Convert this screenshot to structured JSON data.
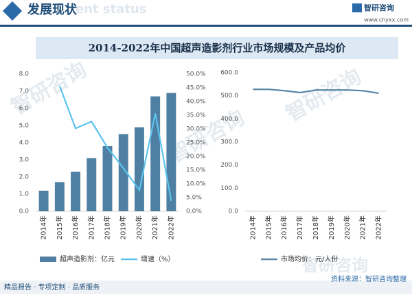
{
  "header": {
    "title": "发展现状",
    "subtitle": "ent status",
    "logo": "智研咨询",
    "url": "www.chyxx.com"
  },
  "banner": "2014-2022年中国超声造影剂行业市场规模及产品均价",
  "watermark": "智研咨询",
  "footer": {
    "left": "精品报告 · 专项定制 · 品质服务",
    "right": "资料来源：智研咨询整理"
  },
  "chart_data": [
    {
      "type": "bar",
      "categories": [
        "2014年",
        "2015年",
        "2016年",
        "2017年",
        "2018年",
        "2019年",
        "2020年",
        "2021年",
        "2022年"
      ],
      "series": [
        {
          "name": "超声造影剂：亿元",
          "type": "bar",
          "color": "#4f7fa3",
          "values": [
            1.2,
            1.7,
            2.3,
            3.1,
            3.8,
            4.5,
            4.9,
            6.7,
            6.9
          ]
        },
        {
          "name": "增速（%）",
          "type": "line",
          "axis": "y2",
          "color": "#5bc4ee",
          "values": [
            null,
            45.7,
            30.2,
            32.7,
            23.2,
            15.7,
            7.7,
            35.7,
            3.7
          ]
        }
      ],
      "ylim": [
        0,
        8
      ],
      "yticks": [
        {
          "value": 0,
          "label": "0.0"
        },
        {
          "value": 1,
          "label": "1.0"
        },
        {
          "value": 2,
          "label": "2.0"
        },
        {
          "value": 3,
          "label": "3.0"
        },
        {
          "value": 4,
          "label": "4.0"
        },
        {
          "value": 5,
          "label": "5.0"
        },
        {
          "value": 6,
          "label": "6.0"
        },
        {
          "value": 7,
          "label": "7.0"
        },
        {
          "value": 8,
          "label": "8.0"
        }
      ],
      "y2lim": [
        0,
        50
      ],
      "y2ticks": [
        {
          "value": 0,
          "label": "0.0%"
        },
        {
          "value": 5,
          "label": "5.0%"
        },
        {
          "value": 10,
          "label": "10.0%"
        },
        {
          "value": 15,
          "label": "15.0%"
        },
        {
          "value": 20,
          "label": "20.0%"
        },
        {
          "value": 25,
          "label": "25.0%"
        },
        {
          "value": 30,
          "label": "30.0%"
        },
        {
          "value": 35,
          "label": "35.0%"
        },
        {
          "value": 40,
          "label": "40.0%"
        },
        {
          "value": 45,
          "label": "45.0%"
        },
        {
          "value": 50,
          "label": "50.0%"
        }
      ]
    },
    {
      "type": "line",
      "categories": [
        "2014年",
        "2015年",
        "2016年",
        "2017年",
        "2018年",
        "2019年",
        "2020年",
        "2021年",
        "2022年"
      ],
      "series": [
        {
          "name": "市场均价：元/人份",
          "type": "line",
          "color": "#5a87a8",
          "values": [
            528,
            528,
            522,
            514,
            525,
            525,
            525,
            522,
            511
          ]
        }
      ],
      "ylim": [
        0,
        600
      ],
      "yticks": [
        {
          "value": 0,
          "label": "0.0"
        },
        {
          "value": 100,
          "label": "100.0"
        },
        {
          "value": 200,
          "label": "200.0"
        },
        {
          "value": 300,
          "label": "300.0"
        },
        {
          "value": 400,
          "label": "400.0"
        },
        {
          "value": 500,
          "label": "500.0"
        },
        {
          "value": 600,
          "label": "600.0"
        }
      ]
    }
  ]
}
